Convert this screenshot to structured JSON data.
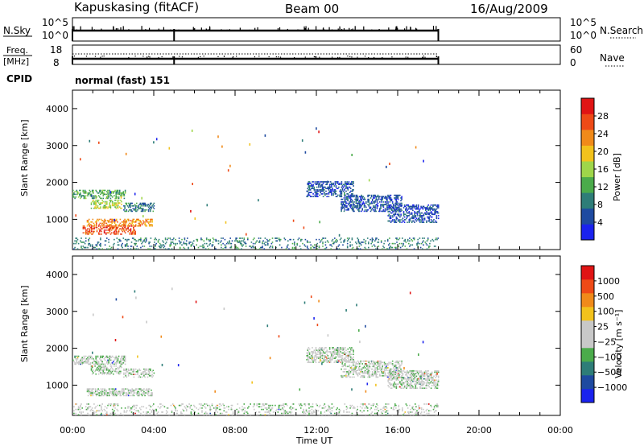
{
  "header": {
    "station": "Kapuskasing (fitACF)",
    "beam": "Beam 00",
    "date": "16/Aug/2009"
  },
  "nsky_panel": {
    "left_label": "N.Sky",
    "right_label": "N.Search",
    "left_ticks": [
      "10^5",
      "10^0"
    ],
    "right_ticks": [
      "10^5",
      "10^0"
    ]
  },
  "freq_panel": {
    "left_label_line1": "Freq.",
    "left_label_line2": "[MHz]",
    "left_ticks": [
      "18",
      "8"
    ],
    "right_label": "Nave",
    "right_ticks": [
      "60",
      "0"
    ]
  },
  "cpid": {
    "label": "CPID",
    "mode": "normal (fast) 151"
  },
  "chart_data": [
    {
      "type": "heatmap",
      "name": "power",
      "ylabel": "Slant Range [km]",
      "xlabel": "Time UT",
      "xlim_hours": [
        0,
        24
      ],
      "ylim": [
        180,
        4500
      ],
      "yticks": [
        1000,
        2000,
        3000,
        4000
      ],
      "colorbar": {
        "label": "Power [dB]",
        "ticks": [
          "4",
          "8",
          "12",
          "16",
          "20",
          "24",
          "28"
        ],
        "colors": [
          "#1a22ee",
          "#1e4aa0",
          "#2e7d78",
          "#4bab4b",
          "#9fd64a",
          "#f2c21c",
          "#f08a1a",
          "#ee4a17",
          "#e01414"
        ]
      },
      "echo_regions": [
        {
          "t0": 0.0,
          "t1": 2.6,
          "r0": 1550,
          "r1": 1800,
          "level": 3
        },
        {
          "t0": 0.9,
          "t1": 2.4,
          "r0": 1280,
          "r1": 1520,
          "level": 4
        },
        {
          "t0": 2.5,
          "t1": 4.0,
          "r0": 1200,
          "r1": 1450,
          "level": 2
        },
        {
          "t0": 0.7,
          "t1": 3.9,
          "r0": 800,
          "r1": 1000,
          "level": 6
        },
        {
          "t0": 0.5,
          "t1": 3.1,
          "r0": 580,
          "r1": 820,
          "level": 7
        },
        {
          "t0": 11.5,
          "t1": 13.8,
          "r0": 1600,
          "r1": 2000,
          "level": 1
        },
        {
          "t0": 13.2,
          "t1": 16.2,
          "r0": 1200,
          "r1": 1650,
          "level": 1
        },
        {
          "t0": 15.5,
          "t1": 18.0,
          "r0": 900,
          "r1": 1400,
          "level": 1
        },
        {
          "t0": 0.0,
          "t1": 18.0,
          "r0": 180,
          "r1": 500,
          "level": 2
        }
      ]
    },
    {
      "type": "heatmap",
      "name": "velocity",
      "ylabel": "Slant Range [km]",
      "xlabel": "Time UT",
      "xlim_hours": [
        0,
        24
      ],
      "ylim": [
        180,
        4500
      ],
      "yticks": [
        1000,
        2000,
        3000,
        4000
      ],
      "colorbar": {
        "label": "Velocity [m s⁻¹]",
        "ticks": [
          "1000",
          "500",
          "100",
          "25",
          "−25",
          "−100",
          "−500",
          "−1000"
        ],
        "colors": [
          "#1a22ee",
          "#1e4aa0",
          "#2e7d78",
          "#4bab4b",
          "#c8c8c8",
          "#c8c8c8",
          "#f2c21c",
          "#f08a1a",
          "#ee4a17",
          "#e01414"
        ]
      },
      "echo_regions": [
        {
          "t0": 0.0,
          "t1": 2.6,
          "r0": 1550,
          "r1": 1800,
          "level": 4
        },
        {
          "t0": 0.9,
          "t1": 2.4,
          "r0": 1280,
          "r1": 1520,
          "level": 4
        },
        {
          "t0": 2.5,
          "t1": 4.0,
          "r0": 1200,
          "r1": 1450,
          "level": 4
        },
        {
          "t0": 0.7,
          "t1": 3.9,
          "r0": 700,
          "r1": 900,
          "level": 4
        },
        {
          "t0": 11.5,
          "t1": 13.8,
          "r0": 1600,
          "r1": 2000,
          "level": 4
        },
        {
          "t0": 13.2,
          "t1": 16.2,
          "r0": 1200,
          "r1": 1650,
          "level": 4
        },
        {
          "t0": 15.5,
          "t1": 18.0,
          "r0": 900,
          "r1": 1400,
          "level": 4
        },
        {
          "t0": 0.0,
          "t1": 18.0,
          "r0": 180,
          "r1": 500,
          "level": 4
        }
      ]
    }
  ],
  "time_axis": {
    "label": "Time UT",
    "ticks": [
      "00:00",
      "04:00",
      "08:00",
      "12:00",
      "16:00",
      "20:00",
      "00:00"
    ]
  }
}
